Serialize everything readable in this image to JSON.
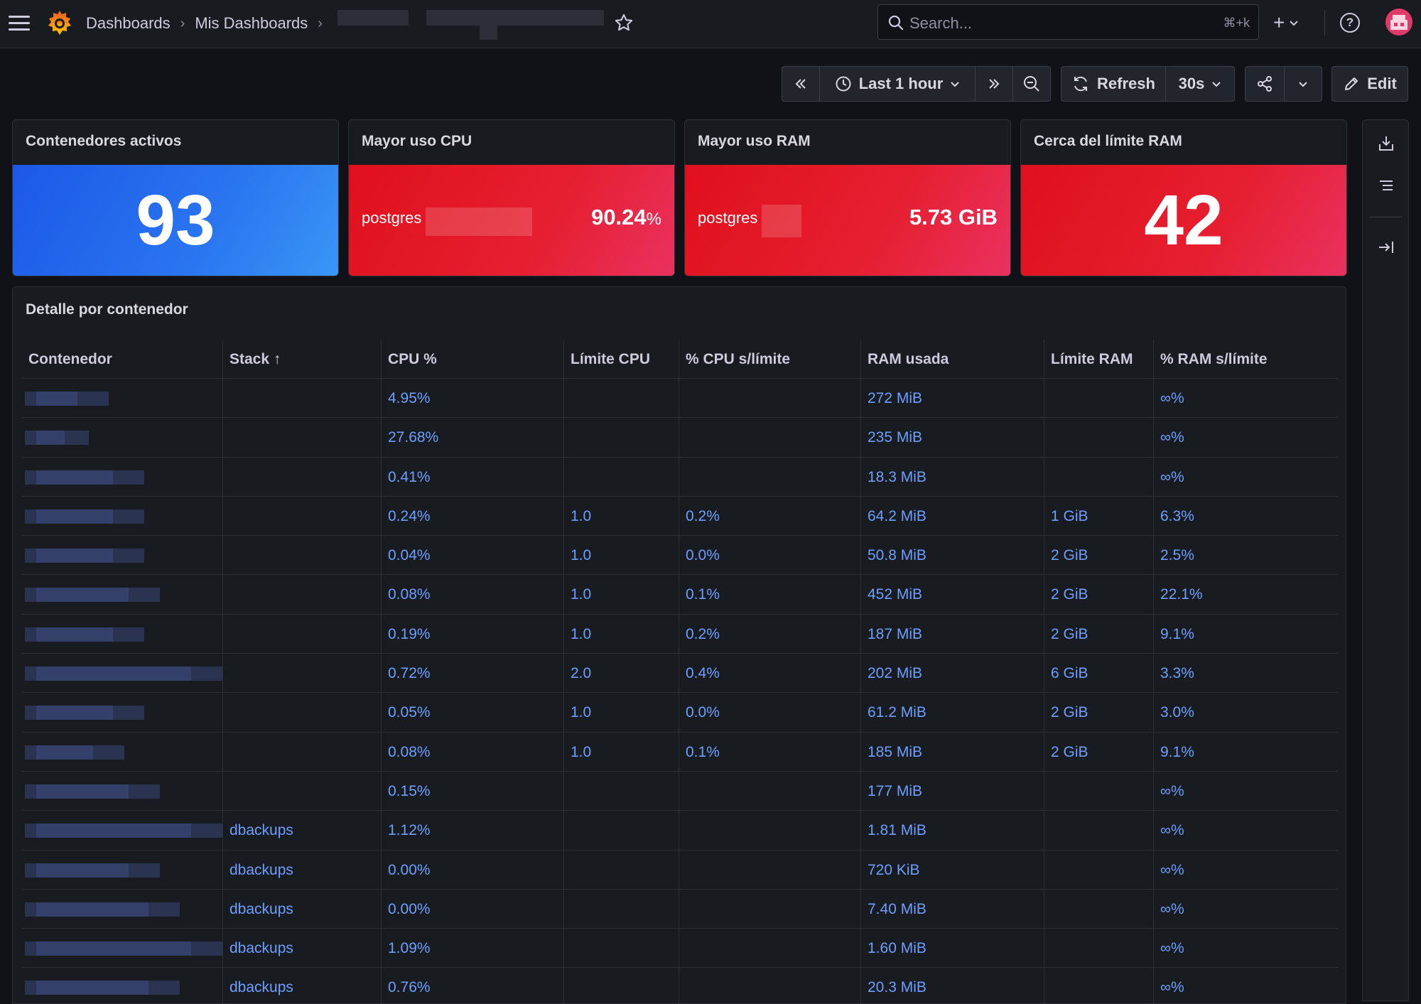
{
  "nav": {
    "breadcrumb": [
      "Dashboards",
      "Mis Dashboards"
    ],
    "search_placeholder": "Search...",
    "search_shortcut": "⌘+k",
    "plus_label": "+"
  },
  "toolbar": {
    "time_range": "Last 1 hour",
    "refresh_label": "Refresh",
    "refresh_interval": "30s",
    "edit_label": "Edit"
  },
  "stats": [
    {
      "title": "Contenedores activos",
      "value": "93",
      "color": "#1f60e6"
    },
    {
      "title": "Mayor uso CPU",
      "name": "postgres",
      "value": "90.24",
      "unit": "%",
      "color": "#e0191f"
    },
    {
      "title": "Mayor uso RAM",
      "name": "postgres",
      "value": "5.73 GiB",
      "color": "#e0191f"
    },
    {
      "title": "Cerca del límite RAM",
      "value": "42",
      "color": "#e0191f"
    }
  ],
  "table": {
    "title": "Detalle por contenedor",
    "columns": [
      "Contenedor",
      "Stack ↑",
      "CPU %",
      "Límite CPU",
      "% CPU s/límite",
      "RAM usada",
      "Límite RAM",
      "% RAM s/límite"
    ],
    "rows": [
      {
        "stack": "",
        "cpu": "4.95%",
        "cpu_limit": "",
        "cpu_pct": "",
        "ram": "272 MiB",
        "ram_limit": "",
        "ram_pct": "∞%"
      },
      {
        "stack": "",
        "cpu": "27.68%",
        "cpu_limit": "",
        "cpu_pct": "",
        "ram": "235 MiB",
        "ram_limit": "",
        "ram_pct": "∞%"
      },
      {
        "stack": "",
        "cpu": "0.41%",
        "cpu_limit": "",
        "cpu_pct": "",
        "ram": "18.3 MiB",
        "ram_limit": "",
        "ram_pct": "∞%"
      },
      {
        "stack": "",
        "cpu": "0.24%",
        "cpu_limit": "1.0",
        "cpu_pct": "0.2%",
        "ram": "64.2 MiB",
        "ram_limit": "1 GiB",
        "ram_pct": "6.3%"
      },
      {
        "stack": "",
        "cpu": "0.04%",
        "cpu_limit": "1.0",
        "cpu_pct": "0.0%",
        "ram": "50.8 MiB",
        "ram_limit": "2 GiB",
        "ram_pct": "2.5%"
      },
      {
        "stack": "",
        "cpu": "0.08%",
        "cpu_limit": "1.0",
        "cpu_pct": "0.1%",
        "ram": "452 MiB",
        "ram_limit": "2 GiB",
        "ram_pct": "22.1%"
      },
      {
        "stack": "",
        "cpu": "0.19%",
        "cpu_limit": "1.0",
        "cpu_pct": "0.2%",
        "ram": "187 MiB",
        "ram_limit": "2 GiB",
        "ram_pct": "9.1%"
      },
      {
        "stack": "",
        "cpu": "0.72%",
        "cpu_limit": "2.0",
        "cpu_pct": "0.4%",
        "ram": "202 MiB",
        "ram_limit": "6 GiB",
        "ram_pct": "3.3%"
      },
      {
        "stack": "",
        "cpu": "0.05%",
        "cpu_limit": "1.0",
        "cpu_pct": "0.0%",
        "ram": "61.2 MiB",
        "ram_limit": "2 GiB",
        "ram_pct": "3.0%"
      },
      {
        "stack": "",
        "cpu": "0.08%",
        "cpu_limit": "1.0",
        "cpu_pct": "0.1%",
        "ram": "185 MiB",
        "ram_limit": "2 GiB",
        "ram_pct": "9.1%"
      },
      {
        "stack": "",
        "cpu": "0.15%",
        "cpu_limit": "",
        "cpu_pct": "",
        "ram": "177 MiB",
        "ram_limit": "",
        "ram_pct": "∞%"
      },
      {
        "stack": "dbackups",
        "cpu": "1.12%",
        "cpu_limit": "",
        "cpu_pct": "",
        "ram": "1.81 MiB",
        "ram_limit": "",
        "ram_pct": "∞%"
      },
      {
        "stack": "dbackups",
        "cpu": "0.00%",
        "cpu_limit": "",
        "cpu_pct": "",
        "ram": "720 KiB",
        "ram_limit": "",
        "ram_pct": "∞%"
      },
      {
        "stack": "dbackups",
        "cpu": "0.00%",
        "cpu_limit": "",
        "cpu_pct": "",
        "ram": "7.40 MiB",
        "ram_limit": "",
        "ram_pct": "∞%"
      },
      {
        "stack": "dbackups",
        "cpu": "1.09%",
        "cpu_limit": "",
        "cpu_pct": "",
        "ram": "1.60 MiB",
        "ram_limit": "",
        "ram_pct": "∞%"
      },
      {
        "stack": "dbackups",
        "cpu": "0.76%",
        "cpu_limit": "",
        "cpu_pct": "",
        "ram": "20.3 MiB",
        "ram_limit": "",
        "ram_pct": "∞%"
      }
    ]
  },
  "rail": {
    "icons": [
      "download-icon",
      "outline-list-icon",
      "collapse-right-icon"
    ]
  }
}
